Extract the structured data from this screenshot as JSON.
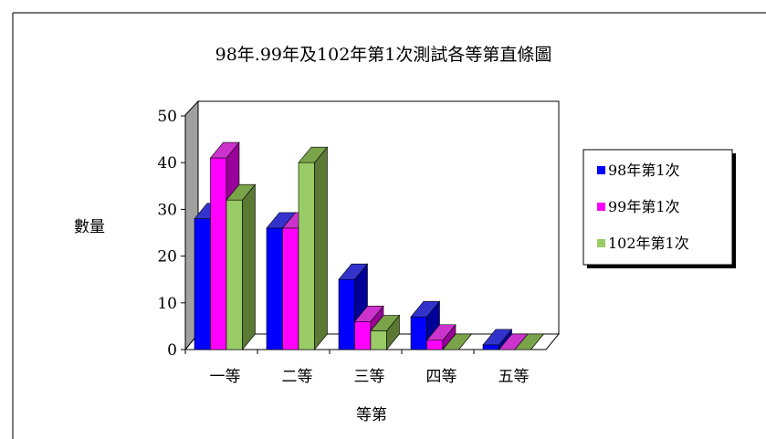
{
  "chart_data": {
    "type": "bar",
    "title": "98年.99年及102年第1次測試各等第直條圖",
    "xlabel": "等第",
    "ylabel": "數量",
    "categories": [
      "一等",
      "二等",
      "三等",
      "四等",
      "五等"
    ],
    "ylim": [
      0,
      50
    ],
    "yticks": [
      "0",
      "10",
      "20",
      "30",
      "40",
      "50"
    ],
    "series": [
      {
        "name": "98年第1次",
        "values": [
          28,
          26,
          15,
          7,
          1
        ],
        "color": "#0000ff",
        "side": "#000099",
        "top": "#3333cc"
      },
      {
        "name": "99年第1次",
        "values": [
          41,
          26,
          6,
          2,
          0
        ],
        "color": "#ff00ff",
        "side": "#990099",
        "top": "#cc33cc"
      },
      {
        "name": "102年第1次",
        "values": [
          32,
          40,
          4,
          0,
          0
        ],
        "color": "#99cc66",
        "side": "#5a7a33",
        "top": "#7aa34a"
      }
    ],
    "legend": "right",
    "grid": false
  }
}
